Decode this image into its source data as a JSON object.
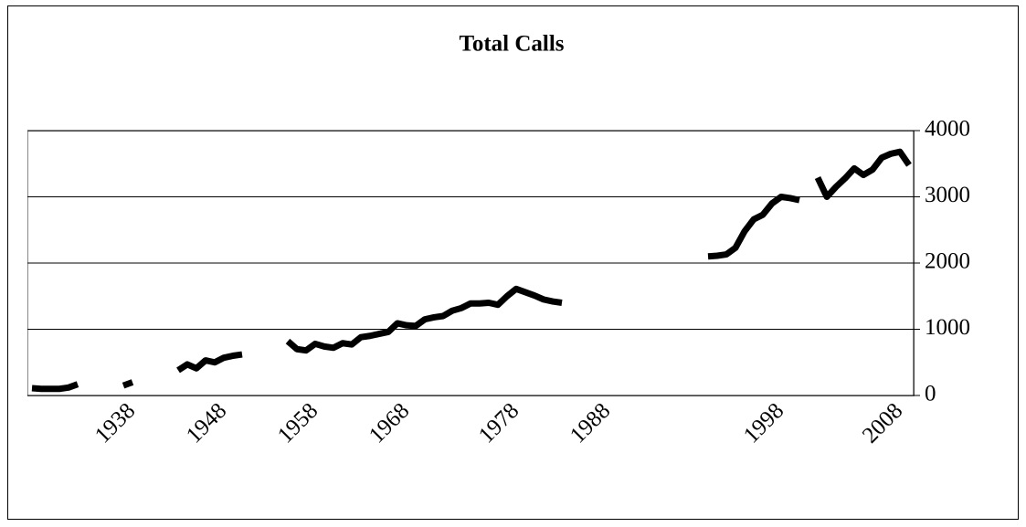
{
  "chart_data": {
    "type": "line",
    "title": "Total Calls",
    "categories": [
      null,
      null,
      null,
      null,
      null,
      null,
      null,
      null,
      null,
      null,
      null,
      "1938",
      null,
      null,
      null,
      null,
      null,
      null,
      null,
      null,
      null,
      "1948",
      null,
      null,
      null,
      null,
      null,
      null,
      null,
      null,
      null,
      "1958",
      null,
      null,
      null,
      null,
      null,
      null,
      null,
      null,
      null,
      "1968",
      null,
      null,
      null,
      null,
      null,
      null,
      null,
      null,
      null,
      null,
      null,
      "1978",
      null,
      null,
      null,
      null,
      null,
      null,
      null,
      null,
      null,
      "1988",
      null,
      null,
      null,
      null,
      null,
      null,
      null,
      null,
      null,
      null,
      null,
      null,
      null,
      null,
      null,
      null,
      null,
      null,
      "1998",
      null,
      null,
      null,
      null,
      null,
      null,
      null,
      null,
      null,
      null,
      null,
      null,
      "2008",
      null
    ],
    "series": [
      {
        "color": "#000000",
        "values": [
          110,
          100,
          100,
          100,
          120,
          170,
          null,
          null,
          null,
          null,
          150,
          200,
          null,
          null,
          null,
          null,
          380,
          470,
          410,
          530,
          500,
          570,
          600,
          620,
          null,
          null,
          null,
          null,
          820,
          700,
          680,
          780,
          740,
          720,
          790,
          770,
          880,
          900,
          930,
          960,
          1090,
          1060,
          1050,
          1150,
          1180,
          1200,
          1280,
          1320,
          1390,
          1390,
          1400,
          1370,
          1500,
          1610,
          1560,
          1510,
          1450,
          1420,
          1400,
          null,
          null,
          null,
          null,
          null,
          null,
          null,
          null,
          null,
          null,
          null,
          null,
          null,
          null,
          null,
          2100,
          2110,
          2130,
          2230,
          2480,
          2660,
          2730,
          2900,
          3000,
          2980,
          2950,
          null,
          3290,
          3000,
          3150,
          3280,
          3430,
          3330,
          3410,
          3590,
          3650,
          3680,
          3480
        ]
      }
    ],
    "ylim": [
      0,
      4000
    ],
    "yticks": [
      0,
      1000,
      2000,
      3000,
      4000
    ],
    "grid": true
  }
}
